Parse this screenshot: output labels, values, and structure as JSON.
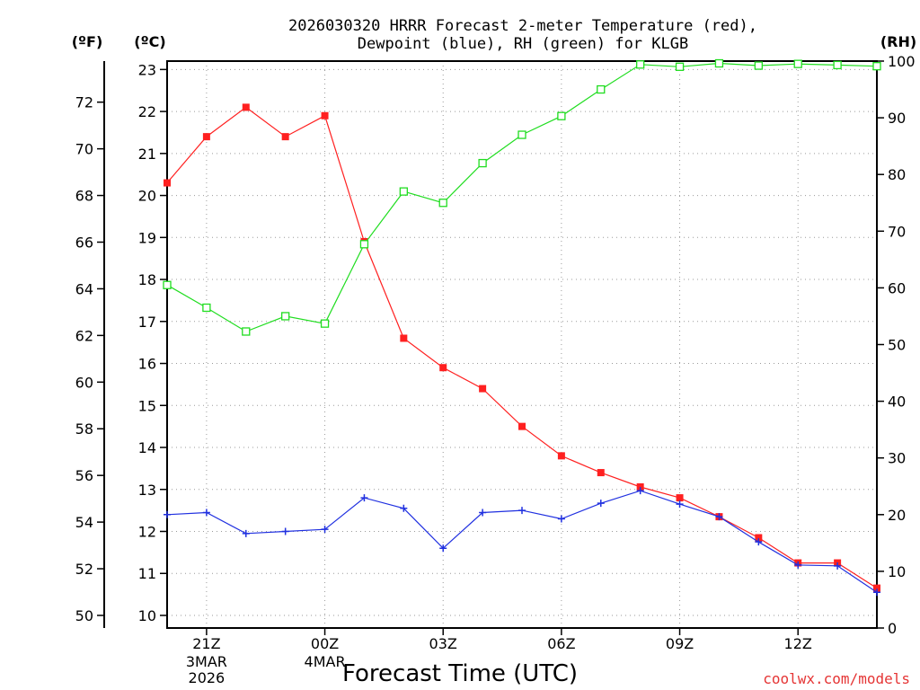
{
  "chart_data": {
    "type": "line",
    "title_line1": "2026030320 HRRR Forecast 2-meter Temperature (red),",
    "title_line2": "Dewpoint (blue), RH (green) for KLGB",
    "xlabel": "Forecast Time (UTC)",
    "left_unit_f": "(ºF)",
    "left_unit_c": "(ºC)",
    "right_unit": "(RH)",
    "credit": "coolwx.com/models",
    "celsius_ticks": [
      "10",
      "11",
      "12",
      "13",
      "14",
      "15",
      "16",
      "17",
      "18",
      "19",
      "20",
      "21",
      "22",
      "23"
    ],
    "fahrenheit_ticks": [
      "50",
      "52",
      "54",
      "56",
      "58",
      "60",
      "62",
      "64",
      "66",
      "68",
      "70",
      "72"
    ],
    "rh_ticks": [
      "0",
      "10",
      "20",
      "30",
      "40",
      "50",
      "60",
      "70",
      "80",
      "90",
      "100"
    ],
    "x_ticks": [
      {
        "label": "21Z",
        "sub1": "3MAR",
        "sub2": "2026"
      },
      {
        "label": "00Z",
        "sub1": "4MAR",
        "sub2": ""
      },
      {
        "label": "03Z",
        "sub1": "",
        "sub2": ""
      },
      {
        "label": "06Z",
        "sub1": "",
        "sub2": ""
      },
      {
        "label": "09Z",
        "sub1": "",
        "sub2": ""
      },
      {
        "label": "12Z",
        "sub1": "",
        "sub2": ""
      }
    ],
    "hours": [
      0,
      1,
      2,
      3,
      4,
      5,
      6,
      7,
      8,
      9,
      10,
      11,
      12,
      13,
      14,
      15,
      16,
      17,
      18
    ],
    "x_range": [
      0,
      18
    ],
    "y_celsius_range": [
      9.7,
      23.2
    ],
    "y_rh_range": [
      0,
      100
    ],
    "series": [
      {
        "name": "Temperature",
        "color": "#ff2020",
        "marker": "filled-square",
        "axis": "C",
        "values": [
          20.3,
          21.4,
          22.1,
          21.4,
          21.9,
          18.9,
          16.6,
          15.9,
          15.4,
          14.5,
          13.8,
          13.4,
          13.06,
          12.8,
          12.35,
          11.85,
          11.25,
          11.25,
          10.65
        ]
      },
      {
        "name": "Dewpoint",
        "color": "#2030e0",
        "marker": "plus",
        "axis": "C",
        "values": [
          12.4,
          12.45,
          11.95,
          12.0,
          12.05,
          12.8,
          12.55,
          11.6,
          12.45,
          12.5,
          12.3,
          12.67,
          12.97,
          12.65,
          12.35,
          11.75,
          11.2,
          11.18,
          10.55
        ]
      },
      {
        "name": "RH",
        "color": "#20dd20",
        "marker": "open-square",
        "axis": "RH",
        "values": [
          60.5,
          56.5,
          52.3,
          55.0,
          53.7,
          67.7,
          77.0,
          75.0,
          82.0,
          87.0,
          90.3,
          95.0,
          99.4,
          99.0,
          99.6,
          99.2,
          99.5,
          99.3,
          99.1
        ]
      }
    ]
  }
}
